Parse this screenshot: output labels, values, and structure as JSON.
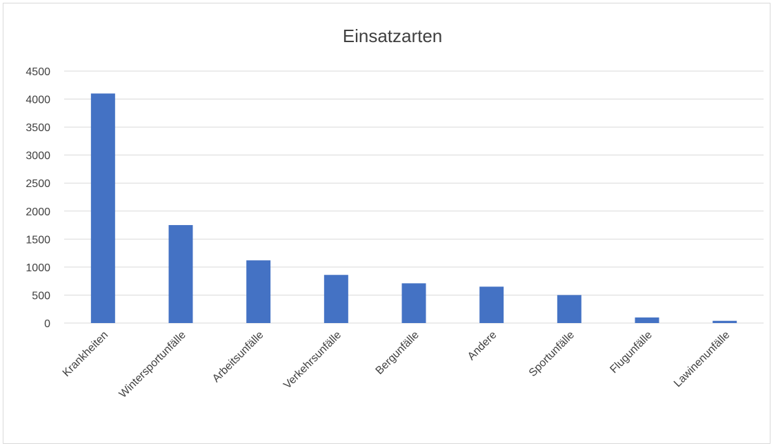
{
  "chart_data": {
    "type": "bar",
    "title": "Einsatzarten",
    "xlabel": "",
    "ylabel": "",
    "categories": [
      "Krankheiten",
      "Wintersportunfälle",
      "Arbeitsunfälle",
      "Verkehrsunfälle",
      "Bergunfälle",
      "Andere",
      "Sportunfälle",
      "Flugunfälle",
      "Lawinenunfälle"
    ],
    "values": [
      4100,
      1750,
      1120,
      860,
      710,
      650,
      500,
      100,
      40
    ],
    "ylim": [
      0,
      4500
    ],
    "yticks": [
      "0",
      "500",
      "1000",
      "1500",
      "2000",
      "2500",
      "3000",
      "3500",
      "4000",
      "4500"
    ],
    "grid": true,
    "legend": "none",
    "colors": {
      "bar": "#4472c4",
      "grid": "#d9d9d9",
      "text": "#404040"
    }
  }
}
